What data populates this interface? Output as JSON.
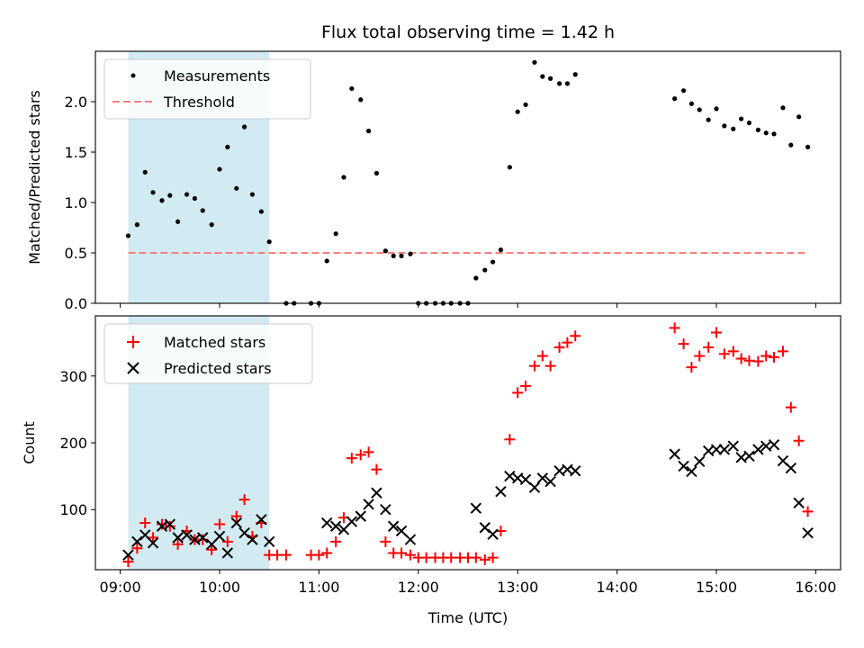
{
  "chart_data": {
    "type": "scatter",
    "title": "Flux total observing time = 1.42 h",
    "xlabel": "Time (UTC)",
    "x_ticks": [
      "09:00",
      "10:00",
      "11:00",
      "12:00",
      "13:00",
      "14:00",
      "15:00",
      "16:00"
    ],
    "xlim_hours": [
      8.75,
      16.25
    ],
    "shaded_interval_hours": [
      9.08,
      10.5
    ],
    "colors": {
      "shade": "#add8e6",
      "matched": "#ff0000",
      "predicted": "#000000",
      "measurements": "#000000",
      "threshold": "#ff7f7f"
    },
    "top": {
      "ylabel": "Matched/Predicted stars",
      "ylim": [
        0,
        2.5
      ],
      "y_ticks": [
        "0.0",
        "0.5",
        "1.0",
        "1.5",
        "2.0"
      ],
      "legend": {
        "position": "upper-left",
        "measurements_label": "Measurements",
        "threshold_label": "Threshold"
      },
      "threshold": 0.5,
      "threshold_range_hours": [
        9.08,
        15.92
      ],
      "measurements": [
        [
          9.08,
          0.67
        ],
        [
          9.17,
          0.78
        ],
        [
          9.25,
          1.3
        ],
        [
          9.33,
          1.1
        ],
        [
          9.42,
          1.02
        ],
        [
          9.5,
          1.07
        ],
        [
          9.58,
          0.81
        ],
        [
          9.67,
          1.08
        ],
        [
          9.75,
          1.04
        ],
        [
          9.83,
          0.92
        ],
        [
          9.92,
          0.78
        ],
        [
          10.0,
          1.33
        ],
        [
          10.08,
          1.55
        ],
        [
          10.17,
          1.14
        ],
        [
          10.25,
          1.75
        ],
        [
          10.33,
          1.08
        ],
        [
          10.42,
          0.91
        ],
        [
          10.5,
          0.61
        ],
        [
          10.67,
          0.0
        ],
        [
          10.75,
          0.0
        ],
        [
          10.92,
          0.0
        ],
        [
          11.0,
          0.0
        ],
        [
          11.08,
          0.42
        ],
        [
          11.17,
          0.69
        ],
        [
          11.25,
          1.25
        ],
        [
          11.33,
          2.13
        ],
        [
          11.42,
          2.02
        ],
        [
          11.5,
          1.71
        ],
        [
          11.58,
          1.29
        ],
        [
          11.67,
          0.52
        ],
        [
          11.75,
          0.47
        ],
        [
          11.83,
          0.47
        ],
        [
          11.92,
          0.49
        ],
        [
          12.0,
          0.0
        ],
        [
          12.08,
          0.0
        ],
        [
          12.17,
          0.0
        ],
        [
          12.25,
          0.0
        ],
        [
          12.33,
          0.0
        ],
        [
          12.42,
          0.0
        ],
        [
          12.5,
          0.0
        ],
        [
          12.58,
          0.25
        ],
        [
          12.67,
          0.33
        ],
        [
          12.75,
          0.41
        ],
        [
          12.83,
          0.53
        ],
        [
          12.92,
          1.35
        ],
        [
          13.0,
          1.9
        ],
        [
          13.08,
          1.97
        ],
        [
          13.17,
          2.39
        ],
        [
          13.25,
          2.25
        ],
        [
          13.33,
          2.23
        ],
        [
          13.42,
          2.18
        ],
        [
          13.5,
          2.18
        ],
        [
          13.58,
          2.27
        ],
        [
          14.58,
          2.03
        ],
        [
          14.67,
          2.11
        ],
        [
          14.75,
          1.98
        ],
        [
          14.83,
          1.92
        ],
        [
          14.92,
          1.82
        ],
        [
          15.0,
          1.93
        ],
        [
          15.08,
          1.76
        ],
        [
          15.17,
          1.73
        ],
        [
          15.25,
          1.83
        ],
        [
          15.33,
          1.79
        ],
        [
          15.42,
          1.72
        ],
        [
          15.5,
          1.69
        ],
        [
          15.58,
          1.68
        ],
        [
          15.67,
          1.94
        ],
        [
          15.75,
          1.57
        ],
        [
          15.83,
          1.85
        ],
        [
          15.92,
          1.55
        ]
      ]
    },
    "bottom": {
      "ylabel": "Count",
      "ylim": [
        10,
        390
      ],
      "y_ticks": [
        "100",
        "200",
        "300"
      ],
      "legend": {
        "position": "upper-left",
        "matched_label": "Matched stars",
        "predicted_label": "Predicted stars"
      },
      "matched": [
        [
          9.08,
          22
        ],
        [
          9.17,
          42
        ],
        [
          9.25,
          80
        ],
        [
          9.33,
          58
        ],
        [
          9.42,
          78
        ],
        [
          9.5,
          75
        ],
        [
          9.58,
          48
        ],
        [
          9.67,
          68
        ],
        [
          9.75,
          55
        ],
        [
          9.83,
          55
        ],
        [
          9.92,
          40
        ],
        [
          10.0,
          78
        ],
        [
          10.08,
          52
        ],
        [
          10.17,
          90
        ],
        [
          10.25,
          115
        ],
        [
          10.33,
          60
        ],
        [
          10.42,
          80
        ],
        [
          10.5,
          32
        ],
        [
          10.58,
          32
        ],
        [
          10.67,
          32
        ],
        [
          10.92,
          32
        ],
        [
          11.0,
          32
        ],
        [
          11.08,
          35
        ],
        [
          11.17,
          52
        ],
        [
          11.25,
          88
        ],
        [
          11.33,
          177
        ],
        [
          11.42,
          182
        ],
        [
          11.5,
          186
        ],
        [
          11.58,
          160
        ],
        [
          11.67,
          52
        ],
        [
          11.75,
          35
        ],
        [
          11.83,
          35
        ],
        [
          11.92,
          32
        ],
        [
          12.0,
          28
        ],
        [
          12.08,
          28
        ],
        [
          12.17,
          28
        ],
        [
          12.25,
          28
        ],
        [
          12.33,
          28
        ],
        [
          12.42,
          28
        ],
        [
          12.5,
          28
        ],
        [
          12.58,
          28
        ],
        [
          12.67,
          25
        ],
        [
          12.75,
          28
        ],
        [
          12.83,
          68
        ],
        [
          12.92,
          205
        ],
        [
          13.0,
          275
        ],
        [
          13.08,
          285
        ],
        [
          13.17,
          315
        ],
        [
          13.25,
          330
        ],
        [
          13.33,
          315
        ],
        [
          13.42,
          343
        ],
        [
          13.5,
          350
        ],
        [
          13.58,
          360
        ],
        [
          14.58,
          372
        ],
        [
          14.67,
          348
        ],
        [
          14.75,
          313
        ],
        [
          14.83,
          330
        ],
        [
          14.92,
          343
        ],
        [
          15.0,
          365
        ],
        [
          15.08,
          333
        ],
        [
          15.17,
          337
        ],
        [
          15.25,
          326
        ],
        [
          15.33,
          323
        ],
        [
          15.42,
          322
        ],
        [
          15.5,
          330
        ],
        [
          15.58,
          328
        ],
        [
          15.67,
          337
        ],
        [
          15.75,
          253
        ],
        [
          15.83,
          203
        ],
        [
          15.92,
          97
        ]
      ],
      "predicted": [
        [
          9.08,
          32
        ],
        [
          9.17,
          52
        ],
        [
          9.25,
          62
        ],
        [
          9.33,
          50
        ],
        [
          9.42,
          75
        ],
        [
          9.5,
          78
        ],
        [
          9.58,
          58
        ],
        [
          9.67,
          62
        ],
        [
          9.75,
          55
        ],
        [
          9.83,
          58
        ],
        [
          9.92,
          48
        ],
        [
          10.0,
          60
        ],
        [
          10.08,
          35
        ],
        [
          10.17,
          80
        ],
        [
          10.25,
          65
        ],
        [
          10.33,
          55
        ],
        [
          10.42,
          85
        ],
        [
          10.5,
          52
        ],
        [
          11.08,
          80
        ],
        [
          11.17,
          75
        ],
        [
          11.25,
          70
        ],
        [
          11.33,
          82
        ],
        [
          11.42,
          90
        ],
        [
          11.5,
          108
        ],
        [
          11.58,
          125
        ],
        [
          11.67,
          100
        ],
        [
          11.75,
          75
        ],
        [
          11.83,
          68
        ],
        [
          11.92,
          55
        ],
        [
          12.58,
          102
        ],
        [
          12.67,
          73
        ],
        [
          12.75,
          63
        ],
        [
          12.83,
          127
        ],
        [
          12.92,
          150
        ],
        [
          13.0,
          147
        ],
        [
          13.08,
          145
        ],
        [
          13.17,
          133
        ],
        [
          13.25,
          147
        ],
        [
          13.33,
          142
        ],
        [
          13.42,
          158
        ],
        [
          13.5,
          160
        ],
        [
          13.58,
          158
        ],
        [
          14.58,
          183
        ],
        [
          14.67,
          165
        ],
        [
          14.75,
          157
        ],
        [
          14.83,
          172
        ],
        [
          14.92,
          188
        ],
        [
          15.0,
          190
        ],
        [
          15.08,
          190
        ],
        [
          15.17,
          195
        ],
        [
          15.25,
          178
        ],
        [
          15.33,
          180
        ],
        [
          15.42,
          190
        ],
        [
          15.5,
          195
        ],
        [
          15.58,
          197
        ],
        [
          15.67,
          173
        ],
        [
          15.75,
          162
        ],
        [
          15.83,
          110
        ],
        [
          15.92,
          65
        ]
      ]
    }
  }
}
